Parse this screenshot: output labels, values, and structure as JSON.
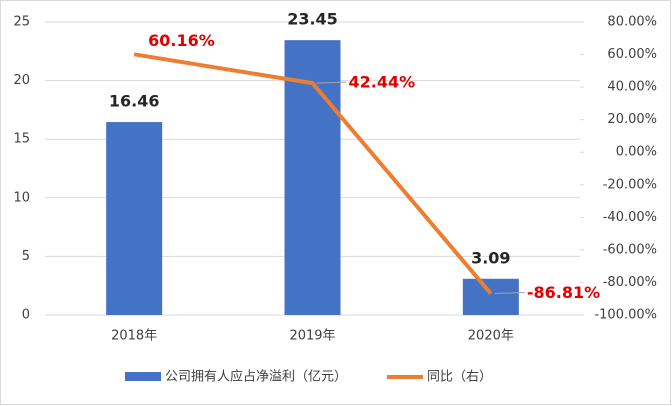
{
  "chart_data": {
    "type": "combo",
    "categories": [
      "2018年",
      "2019年",
      "2020年"
    ],
    "series": [
      {
        "name": "公司拥有人应占净溢利（亿元）",
        "type": "bar",
        "color": "#4472c4",
        "values": [
          16.46,
          23.45,
          3.09
        ]
      },
      {
        "name": "同比（右）",
        "type": "line",
        "color": "#ed7d31",
        "axis": "y2",
        "values": [
          60.16,
          42.44,
          -86.81
        ],
        "value_labels": [
          "60.16%",
          "42.44%",
          "-86.81%"
        ]
      }
    ],
    "ylim": [
      0,
      25
    ],
    "yticks": [
      0,
      5,
      10,
      15,
      20,
      25
    ],
    "y2lim": [
      -100,
      80
    ],
    "y2ticks": [
      {
        "value": -100,
        "label": "-100.00%"
      },
      {
        "value": -80,
        "label": "-80.00%"
      },
      {
        "value": -60,
        "label": "-60.00%"
      },
      {
        "value": -40,
        "label": "-40.00%"
      },
      {
        "value": -20,
        "label": "-20.00%"
      },
      {
        "value": 0,
        "label": "0.00%"
      },
      {
        "value": 20,
        "label": "20.00%"
      },
      {
        "value": 40,
        "label": "40.00%"
      },
      {
        "value": 60,
        "label": "60.00%"
      },
      {
        "value": 80,
        "label": "80.00%"
      }
    ],
    "grid": true
  }
}
